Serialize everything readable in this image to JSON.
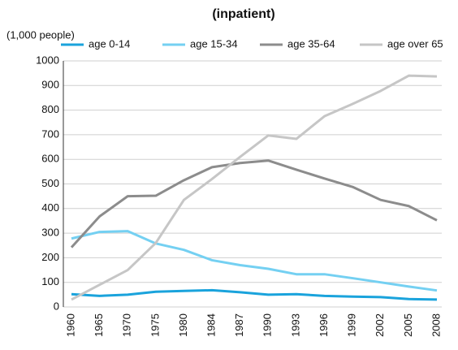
{
  "chart_data": {
    "type": "line",
    "title": "(inpatient)",
    "y_label": "(1,000 people)",
    "categories": [
      "1960",
      "1965",
      "1970",
      "1975",
      "1980",
      "1984",
      "1987",
      "1990",
      "1993",
      "1996",
      "1999",
      "2002",
      "2005",
      "2008"
    ],
    "series": [
      {
        "name": "age 0-14",
        "color": "#1aa3dc",
        "values": [
          52,
          45,
          50,
          62,
          65,
          68,
          60,
          50,
          52,
          45,
          42,
          40,
          32,
          30
        ]
      },
      {
        "name": "age 15-34",
        "color": "#74d0f2",
        "values": [
          278,
          305,
          308,
          258,
          232,
          190,
          170,
          155,
          133,
          133,
          117,
          100,
          83,
          67
        ]
      },
      {
        "name": "age 35-64",
        "color": "#8c8c8c",
        "values": [
          242,
          368,
          450,
          452,
          515,
          568,
          585,
          595,
          558,
          522,
          488,
          435,
          410,
          352
        ]
      },
      {
        "name": "age over 65",
        "color": "#c6c6c6",
        "values": [
          30,
          90,
          150,
          260,
          435,
          520,
          610,
          697,
          683,
          775,
          825,
          878,
          940,
          937
        ]
      }
    ],
    "ylim": [
      0,
      1000
    ],
    "yticks": [
      0,
      100,
      200,
      300,
      400,
      500,
      600,
      700,
      800,
      900,
      1000
    ],
    "grid": true,
    "legend": "top"
  }
}
